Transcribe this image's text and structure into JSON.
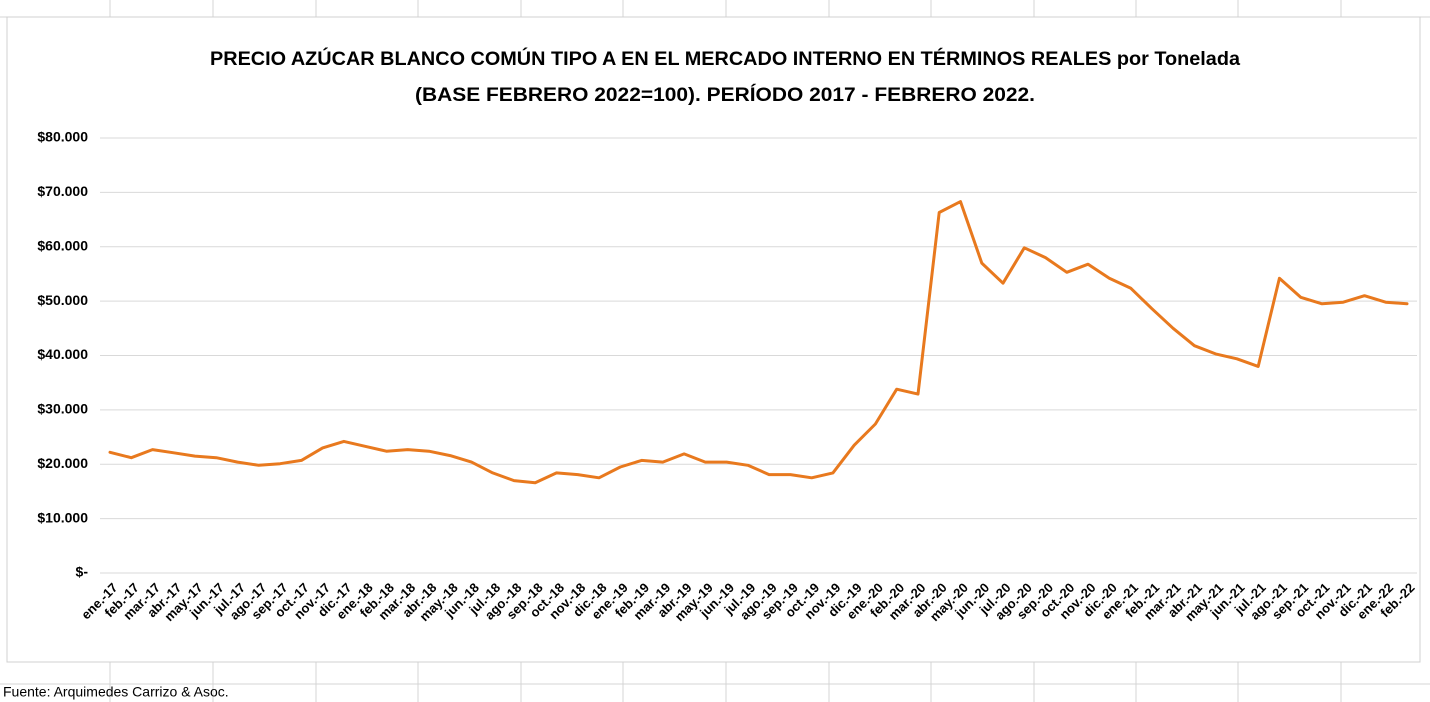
{
  "chart_data": {
    "type": "line",
    "title": [
      "PRECIO AZÚCAR BLANCO COMÚN TIPO A EN EL MERCADO INTERNO EN TÉRMINOS REALES por Tonelada",
      "(BASE FEBRERO 2022=100). PERÍODO 2017 - FEBRERO 2022."
    ],
    "source": "Fuente: Arquimedes Carrizo & Asoc.",
    "categories": [
      "ene.-17",
      "feb.-17",
      "mar.-17",
      "abr.-17",
      "may.-17",
      "jun.-17",
      "jul.-17",
      "ago.-17",
      "sep.-17",
      "oct.-17",
      "nov.-17",
      "dic.-17",
      "ene.-18",
      "feb.-18",
      "mar.-18",
      "abr.-18",
      "may.-18",
      "jun.-18",
      "jul.-18",
      "ago.-18",
      "sep.-18",
      "oct.-18",
      "nov.-18",
      "dic.-18",
      "ene.-19",
      "feb.-19",
      "mar.-19",
      "abr.-19",
      "may.-19",
      "jun.-19",
      "jul.-19",
      "ago.-19",
      "sep.-19",
      "oct.-19",
      "nov.-19",
      "dic.-19",
      "ene.-20",
      "feb.-20",
      "mar.-20",
      "abr.-20",
      "may.-20",
      "jun.-20",
      "jul.-20",
      "ago.-20",
      "sep.-20",
      "oct.-20",
      "nov.-20",
      "dic.-20",
      "ene.-21",
      "feb.-21",
      "mar.-21",
      "abr.-21",
      "may.-21",
      "jun.-21",
      "jul.-21",
      "ago.-21",
      "sep.-21",
      "oct.-21",
      "nov.-21",
      "dic.-21",
      "ene.-22",
      "feb.-22"
    ],
    "values": [
      22200,
      21200,
      22700,
      22100,
      21500,
      21200,
      20400,
      19800,
      20100,
      20700,
      23000,
      24200,
      23300,
      22400,
      22700,
      22400,
      21600,
      20400,
      18400,
      17000,
      16600,
      18400,
      18100,
      17500,
      19500,
      20700,
      20400,
      21900,
      20400,
      20400,
      19800,
      18100,
      18100,
      17500,
      18400,
      23500,
      27400,
      33800,
      32900,
      66300,
      68300,
      57000,
      53300,
      59800,
      58000,
      55300,
      56800,
      54200,
      52400,
      48600,
      45000,
      41800,
      40300,
      39400,
      38000,
      54200,
      50700,
      49500,
      49800,
      51000,
      49800,
      49500
    ],
    "color": "#e8791e",
    "ylim": [
      0,
      80000
    ],
    "yticks": [
      {
        "value": 0,
        "label": "$-"
      },
      {
        "value": 10000,
        "label": "$10.000"
      },
      {
        "value": 20000,
        "label": "$20.000"
      },
      {
        "value": 30000,
        "label": "$30.000"
      },
      {
        "value": 40000,
        "label": "$40.000"
      },
      {
        "value": 50000,
        "label": "$50.000"
      },
      {
        "value": 60000,
        "label": "$60.000"
      },
      {
        "value": 70000,
        "label": "$70.000"
      },
      {
        "value": 80000,
        "label": "$80.000"
      }
    ],
    "grid": true
  }
}
